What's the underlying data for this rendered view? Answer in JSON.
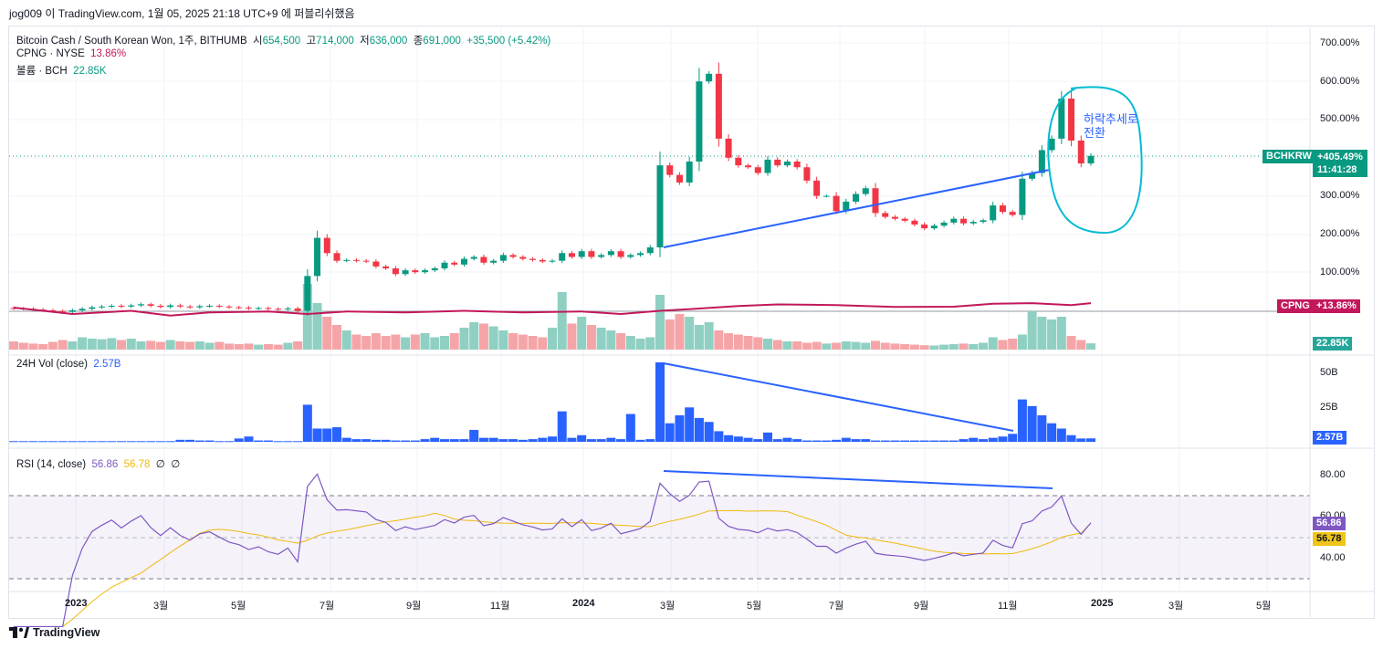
{
  "publish_line": "jog009 이 TradingView.com, 1월 05, 2025 21:18 UTC+9 에 퍼블리쉬했음",
  "legend": {
    "symbol": "Bitcoin Cash / South Korean Won, 1주, BITHUMB",
    "o_label": "시",
    "o": "654,500",
    "h_label": "고",
    "h": "714,000",
    "l_label": "저",
    "l": "636,000",
    "c_label": "종",
    "c": "691,000",
    "change": "+35,500 (+5.42%)",
    "cpng_label": "CPNG · NYSE",
    "cpng_value": "13.86%",
    "vol_label": "볼륨 · BCH",
    "vol_value": "22.85K",
    "vol24_label": "24H Vol (close)",
    "vol24_value": "2.57B",
    "rsi_label": "RSI (14, close)",
    "rsi_value": "56.86",
    "rsi_ma": "56.78",
    "rsi_x1": "∅",
    "rsi_x2": "∅"
  },
  "price_axis": [
    "700.00%",
    "600.00%",
    "500.00%",
    "300.00%",
    "200.00%",
    "100.00%"
  ],
  "price_tags": {
    "symbol": "BCHKRW",
    "pct": "+405.49%",
    "countdown": "11:41:28",
    "cpng": "CPNG",
    "cpng_pct": "+13.86%",
    "vol": "22.85K"
  },
  "vol_axis": [
    "50B",
    "25B"
  ],
  "vol_tag": "2.57B",
  "rsi_axis": [
    "80.00",
    "60.00",
    "40.00"
  ],
  "rsi_tags": {
    "rsi": "56.86",
    "ma": "56.78"
  },
  "time_axis": [
    "2023",
    "3월",
    "5월",
    "7월",
    "9월",
    "11월",
    "2024",
    "3월",
    "5월",
    "7월",
    "9월",
    "11월",
    "2025",
    "3월",
    "5월"
  ],
  "annotation": [
    "하락추세로",
    "전환"
  ],
  "footer": "TradingView",
  "colors": {
    "up": "#089981",
    "down": "#f23645",
    "cpng": "#c2185b",
    "vol24": "#2962ff",
    "rsi": "#7e57c2",
    "rsi_ma": "#f0b90b",
    "circle": "#00bcd4"
  },
  "chart_data": {
    "type": "candlestick",
    "interval": "1W",
    "unit": "% change",
    "closes": [
      5,
      4,
      2,
      0,
      -2,
      -4,
      0,
      4,
      8,
      10,
      12,
      10,
      13,
      16,
      12,
      9,
      13,
      10,
      8,
      11,
      12,
      10,
      8,
      7,
      5,
      6,
      4,
      3,
      5,
      -1,
      90,
      190,
      150,
      130,
      132,
      130,
      128,
      115,
      110,
      95,
      105,
      100,
      105,
      110,
      125,
      120,
      135,
      140,
      125,
      130,
      145,
      140,
      135,
      132,
      128,
      130,
      150,
      140,
      155,
      140,
      145,
      155,
      140,
      145,
      150,
      165,
      380,
      355,
      335,
      390,
      600,
      620,
      450,
      400,
      380,
      375,
      360,
      395,
      380,
      390,
      375,
      340,
      300,
      300,
      260,
      285,
      305,
      320,
      255,
      245,
      240,
      235,
      225,
      215,
      222,
      230,
      240,
      228,
      232,
      236,
      275,
      258,
      250,
      345,
      360,
      420,
      450,
      555,
      445,
      385,
      405
    ],
    "volume_k": [
      30,
      25,
      22,
      20,
      28,
      35,
      30,
      45,
      40,
      38,
      42,
      35,
      40,
      30,
      32,
      28,
      35,
      30,
      28,
      30,
      25,
      28,
      22,
      20,
      22,
      18,
      20,
      18,
      25,
      30,
      240,
      170,
      120,
      90,
      70,
      55,
      50,
      60,
      50,
      55,
      45,
      55,
      60,
      45,
      50,
      60,
      80,
      100,
      95,
      85,
      70,
      60,
      55,
      50,
      45,
      80,
      210,
      95,
      120,
      90,
      80,
      70,
      60,
      50,
      40,
      45,
      200,
      110,
      130,
      120,
      90,
      100,
      70,
      60,
      55,
      50,
      45,
      40,
      35,
      30,
      30,
      25,
      28,
      22,
      25,
      30,
      28,
      25,
      32,
      25,
      22,
      20,
      18,
      16,
      15,
      18,
      20,
      22,
      20,
      25,
      45,
      35,
      40,
      55,
      140,
      120,
      110,
      120,
      50,
      35,
      22.85
    ],
    "vol24_b": [
      0.5,
      0.5,
      0.5,
      0.5,
      0.5,
      0.5,
      0.5,
      0.5,
      0.5,
      0.5,
      0.5,
      0.5,
      0.5,
      0.5,
      0.5,
      0.5,
      0.5,
      1.5,
      1.5,
      1,
      1,
      0.5,
      0.5,
      2.5,
      4,
      1,
      1,
      0.5,
      0.5,
      0.5,
      28,
      10,
      10,
      11,
      3,
      2,
      2,
      1.5,
      1.5,
      1,
      1,
      1,
      2,
      3,
      2,
      2,
      2,
      9,
      3,
      3,
      2,
      2,
      1.5,
      2,
      3,
      4,
      23,
      3,
      5,
      2,
      2,
      3,
      2,
      21,
      1.5,
      2,
      60,
      14,
      20,
      26,
      18,
      15,
      8,
      5,
      4,
      3,
      2,
      7,
      2,
      3,
      2,
      1,
      1,
      1,
      1.5,
      3,
      2,
      2,
      1,
      1,
      1,
      1,
      1,
      1,
      1,
      1,
      1,
      2,
      3,
      2,
      3,
      4,
      6,
      32,
      27,
      20,
      14,
      10,
      5,
      2.5,
      2.57
    ],
    "cpng_points": [
      [
        0,
        0
      ],
      [
        6,
        -20
      ],
      [
        12,
        -10
      ],
      [
        16,
        -25
      ],
      [
        20,
        -15
      ],
      [
        26,
        -12
      ],
      [
        30,
        -20
      ],
      [
        34,
        -12
      ],
      [
        40,
        -15
      ],
      [
        46,
        -10
      ],
      [
        52,
        -15
      ],
      [
        58,
        -12
      ],
      [
        62,
        -20
      ],
      [
        66,
        -10
      ],
      [
        70,
        -3
      ],
      [
        74,
        5
      ],
      [
        78,
        10
      ],
      [
        84,
        8
      ],
      [
        90,
        2
      ],
      [
        96,
        3
      ],
      [
        100,
        12
      ],
      [
        104,
        14
      ],
      [
        108,
        8
      ],
      [
        110,
        13.86
      ]
    ],
    "rsi_period": 14,
    "rsi_levels": [
      70,
      50,
      30
    ],
    "rsi_last": 56.86,
    "rsi_ma_last": 56.78
  }
}
